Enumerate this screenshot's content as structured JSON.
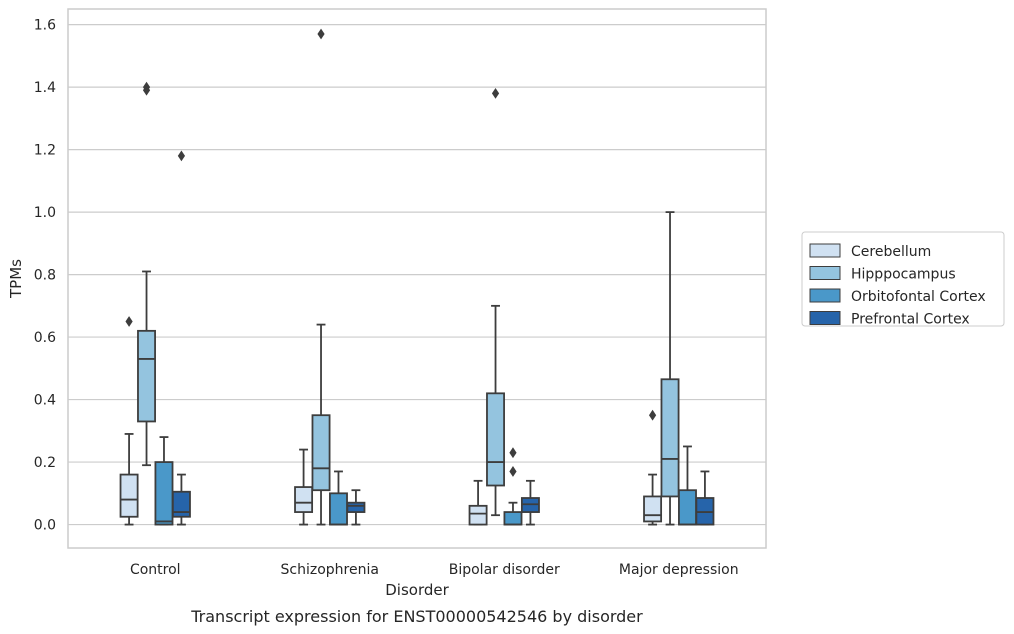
{
  "caption": "Transcript expression for ENST00000542546 by disorder",
  "chart_data": {
    "type": "box",
    "title": "",
    "xlabel": "Disorder",
    "ylabel": "TPMs",
    "ylim": [
      -0.075,
      1.65
    ],
    "yticks": [
      0.0,
      0.2,
      0.4,
      0.6,
      0.8,
      1.0,
      1.2,
      1.4,
      1.6
    ],
    "ytick_labels": [
      "0.0",
      "0.2",
      "0.4",
      "0.6",
      "0.8",
      "1.0",
      "1.2",
      "1.4",
      "1.6"
    ],
    "grid": "horizontal",
    "legend_position": "right",
    "categories": [
      "Control",
      "Schizophrenia",
      "Bipolar disorder",
      "Major depression"
    ],
    "series": [
      {
        "name": "Cerebellum",
        "color": "#d0e1f2",
        "boxes": [
          {
            "whislo": 0.0,
            "q1": 0.025,
            "med": 0.08,
            "q3": 0.16,
            "whishi": 0.29,
            "fliers": [
              0.65
            ]
          },
          {
            "whislo": 0.0,
            "q1": 0.04,
            "med": 0.07,
            "q3": 0.12,
            "whishi": 0.24,
            "fliers": []
          },
          {
            "whislo": 0.0,
            "q1": 0.0,
            "med": 0.035,
            "q3": 0.06,
            "whishi": 0.14,
            "fliers": []
          },
          {
            "whislo": 0.0,
            "q1": 0.01,
            "med": 0.03,
            "q3": 0.09,
            "whishi": 0.16,
            "fliers": [
              0.35
            ]
          }
        ]
      },
      {
        "name": "Hipppocampus",
        "color": "#94c4df",
        "boxes": [
          {
            "whislo": 0.19,
            "q1": 0.33,
            "med": 0.53,
            "q3": 0.62,
            "whishi": 0.81,
            "fliers": [
              1.39,
              1.4
            ]
          },
          {
            "whislo": 0.0,
            "q1": 0.11,
            "med": 0.18,
            "q3": 0.35,
            "whishi": 0.64,
            "fliers": [
              1.57
            ]
          },
          {
            "whislo": 0.03,
            "q1": 0.125,
            "med": 0.2,
            "q3": 0.42,
            "whishi": 0.7,
            "fliers": [
              1.38
            ]
          },
          {
            "whislo": 0.0,
            "q1": 0.09,
            "med": 0.21,
            "q3": 0.465,
            "whishi": 1.0,
            "fliers": []
          }
        ]
      },
      {
        "name": "Orbitofontal Cortex",
        "color": "#4a98c9",
        "boxes": [
          {
            "whislo": 0.0,
            "q1": 0.0,
            "med": 0.01,
            "q3": 0.2,
            "whishi": 0.28,
            "fliers": []
          },
          {
            "whislo": 0.0,
            "q1": 0.0,
            "med": 0.0,
            "q3": 0.1,
            "whishi": 0.17,
            "fliers": []
          },
          {
            "whislo": 0.0,
            "q1": 0.0,
            "med": 0.0,
            "q3": 0.04,
            "whishi": 0.07,
            "fliers": [
              0.17,
              0.23
            ]
          },
          {
            "whislo": 0.0,
            "q1": 0.0,
            "med": 0.0,
            "q3": 0.11,
            "whishi": 0.25,
            "fliers": []
          }
        ]
      },
      {
        "name": "Prefrontal Cortex",
        "color": "#2664aa",
        "boxes": [
          {
            "whislo": 0.0,
            "q1": 0.025,
            "med": 0.04,
            "q3": 0.105,
            "whishi": 0.16,
            "fliers": [
              1.18
            ]
          },
          {
            "whislo": 0.0,
            "q1": 0.04,
            "med": 0.06,
            "q3": 0.07,
            "whishi": 0.11,
            "fliers": []
          },
          {
            "whislo": 0.0,
            "q1": 0.04,
            "med": 0.065,
            "q3": 0.085,
            "whishi": 0.14,
            "fliers": []
          },
          {
            "whislo": 0.0,
            "q1": 0.0,
            "med": 0.04,
            "q3": 0.085,
            "whishi": 0.17,
            "fliers": []
          }
        ]
      }
    ]
  }
}
